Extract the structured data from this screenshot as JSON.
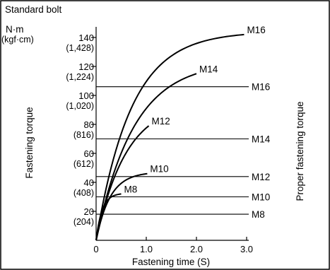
{
  "chart_data": {
    "type": "line",
    "title": "Standard bolt",
    "ylabel": "Fastening torque",
    "xlabel": "Fastening time (S)",
    "y2label": "Proper fastening torque",
    "unit_primary": "N·m",
    "unit_secondary": "(kgf·cm)",
    "xlim": [
      0,
      3.0
    ],
    "ylim": [
      0,
      140
    ],
    "x_ticks": [
      {
        "value": 0,
        "label": "0"
      },
      {
        "value": 1.0,
        "label": "1.0"
      },
      {
        "value": 2.0,
        "label": "2.0"
      },
      {
        "value": 3.0,
        "label": "3.0"
      }
    ],
    "y_ticks": [
      {
        "value": 20,
        "label": "20",
        "sublabel": "(204)"
      },
      {
        "value": 40,
        "label": "40",
        "sublabel": "(408)"
      },
      {
        "value": 60,
        "label": "60",
        "sublabel": "(612)"
      },
      {
        "value": 80,
        "label": "80",
        "sublabel": "(816)"
      },
      {
        "value": 100,
        "label": "100",
        "sublabel": "(1,020)"
      },
      {
        "value": 120,
        "label": "120",
        "sublabel": "(1,224)"
      },
      {
        "value": 140,
        "label": "140",
        "sublabel": "(1,428)"
      }
    ],
    "series": [
      {
        "name": "M8",
        "end_x": 0.5,
        "end_y": 32,
        "tau": 0.12
      },
      {
        "name": "M10",
        "end_x": 1.02,
        "end_y": 46,
        "tau": 0.28
      },
      {
        "name": "M12",
        "end_x": 1.05,
        "end_y": 79,
        "tau": 0.6
      },
      {
        "name": "M14",
        "end_x": 2.0,
        "end_y": 115,
        "tau": 0.75
      },
      {
        "name": "M16",
        "end_x": 2.95,
        "end_y": 142,
        "tau": 0.7
      }
    ],
    "proper_torque": [
      {
        "name": "M16",
        "value": 106
      },
      {
        "name": "M14",
        "value": 70
      },
      {
        "name": "M12",
        "value": 44
      },
      {
        "name": "M10",
        "value": 30
      },
      {
        "name": "M8",
        "value": 18
      }
    ],
    "grid": false
  }
}
